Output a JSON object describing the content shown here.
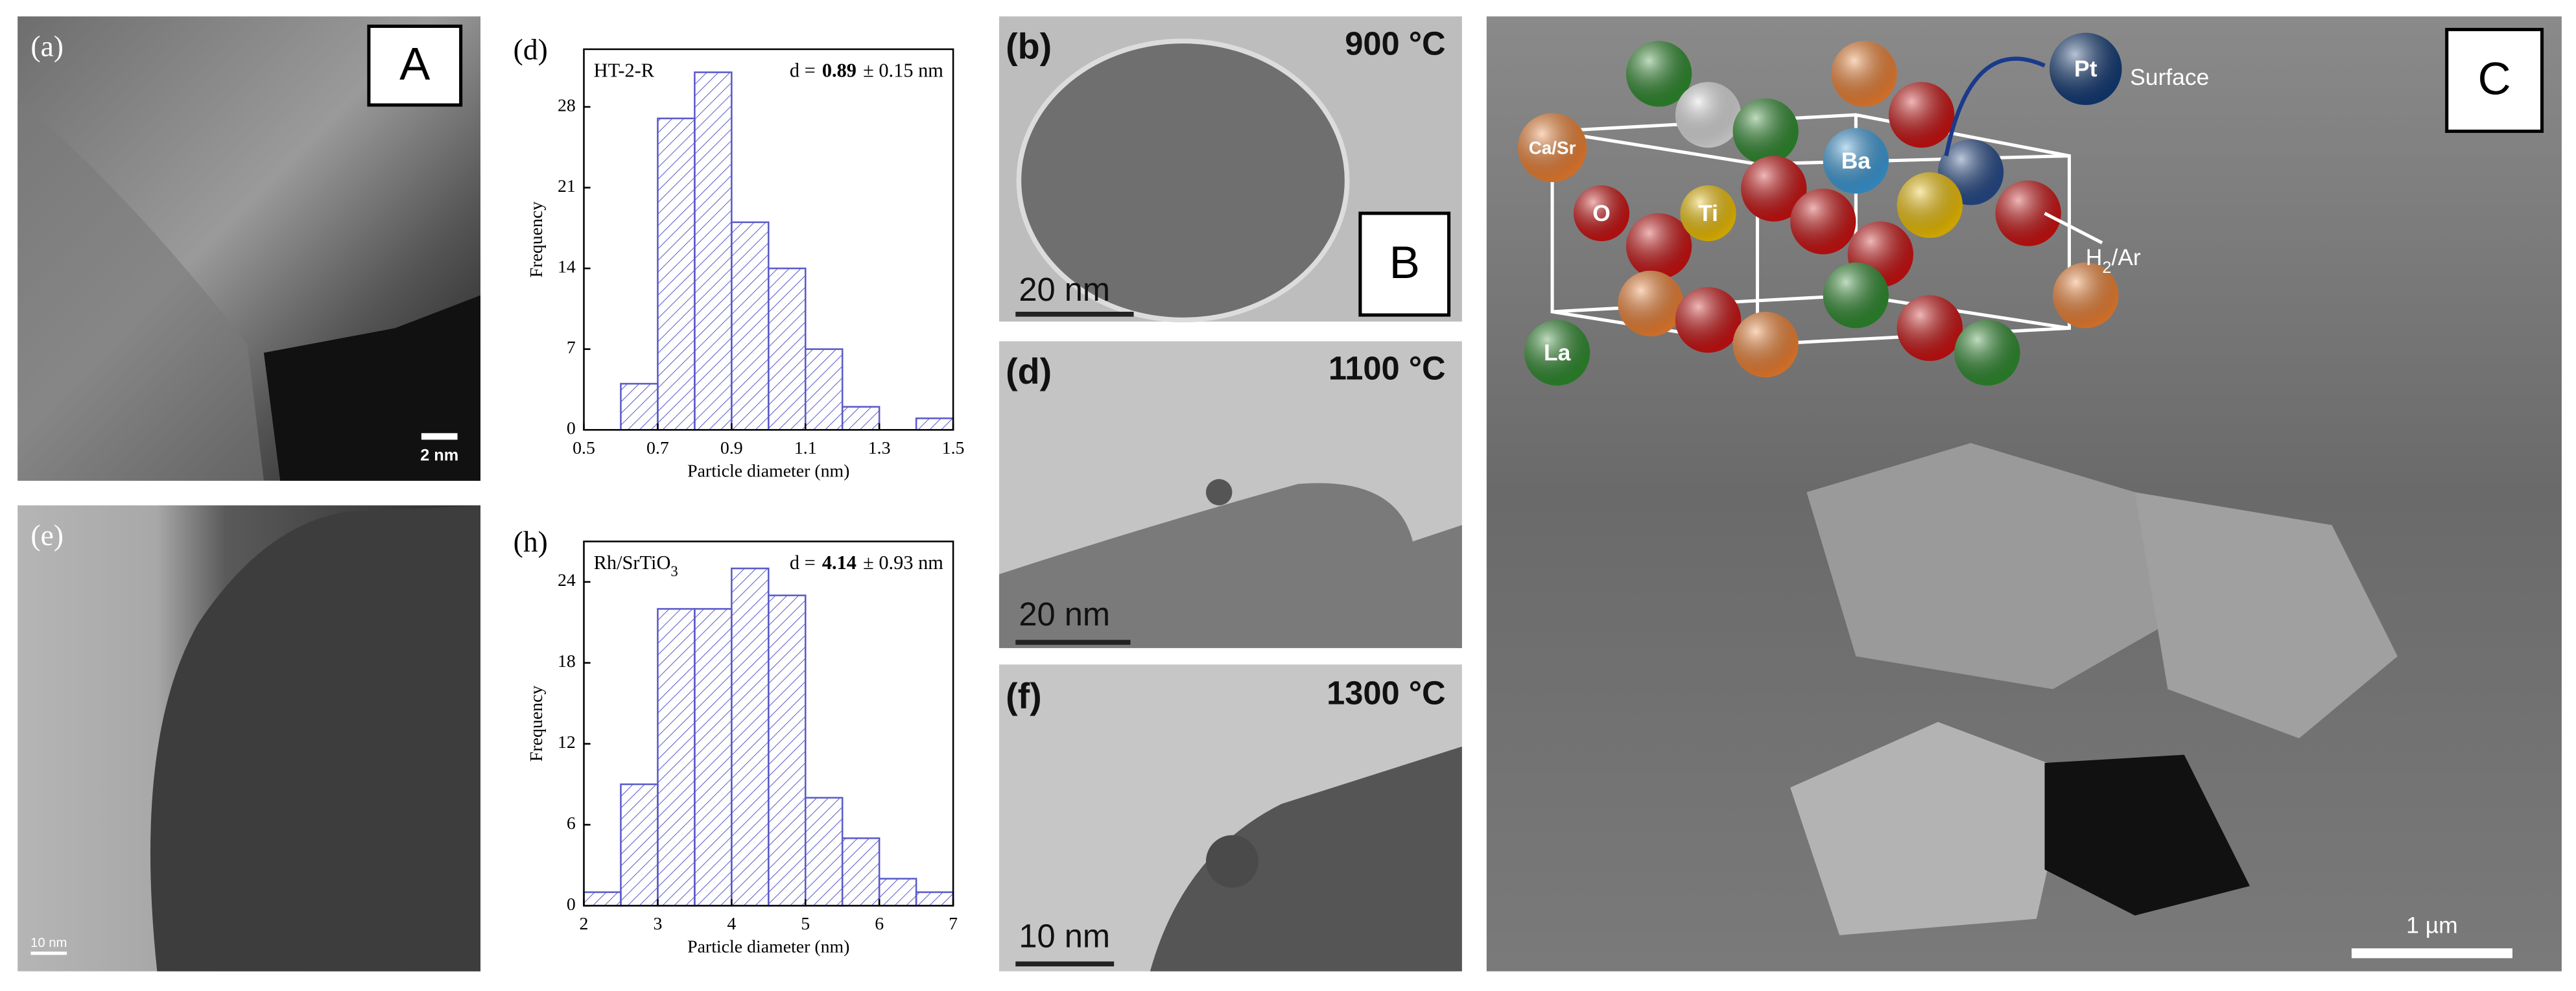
{
  "panels": {
    "a": {
      "label": "(a)",
      "tag": "A",
      "scale": "2 nm"
    },
    "e": {
      "label": "(e)",
      "scale": "10 nm"
    },
    "b": {
      "label": "(b)",
      "temperature": "900 °C",
      "scale": "20 nm",
      "tag": "B"
    },
    "d": {
      "label": "(d)",
      "temperature": "1100 °C",
      "scale": "20 nm"
    },
    "f": {
      "label": "(f)",
      "temperature": "1300 °C",
      "scale": "10 nm"
    },
    "c": {
      "tag": "C",
      "scale": "1 µm",
      "atoms": [
        "Pt",
        "Surface",
        "Ca/Sr",
        "Ba",
        "O",
        "Ti",
        "La"
      ],
      "gas": "H",
      "gas_sub": "2",
      "gas_rest": "/Ar"
    }
  },
  "chart_data": [
    {
      "type": "histogram",
      "panel_label": "(d)",
      "sample": "HT-2-R",
      "mean_prefix": "d =",
      "mean": "0.89",
      "mean_suffix": "± 0.15 nm",
      "x_label": "Particle diameter (nm)",
      "y_label": "Frequency",
      "bins": [
        0.6,
        0.7,
        0.8,
        0.9,
        1.0,
        1.1,
        1.2,
        1.3,
        1.4,
        1.5
      ],
      "values": [
        4,
        27,
        31,
        18,
        14,
        7,
        2,
        0,
        1
      ],
      "color": "#5a5ac8",
      "xlim": [
        0.5,
        1.5
      ],
      "xticks": [
        0.5,
        0.7,
        0.9,
        1.1,
        1.3,
        1.5
      ],
      "ylim": [
        0,
        33
      ],
      "yticks": [
        0,
        7,
        14,
        21,
        28
      ]
    },
    {
      "type": "histogram",
      "panel_label": "(h)",
      "sample": "Rh/SrTiO",
      "sample_sub": "3",
      "mean_prefix": "d =",
      "mean": "4.14",
      "mean_suffix": "± 0.93 nm",
      "x_label": "Particle diameter (nm)",
      "y_label": "Frequency",
      "bins": [
        2,
        2.5,
        3,
        3.5,
        4,
        4.5,
        5,
        5.5,
        6,
        6.5,
        7
      ],
      "values": [
        1,
        9,
        22,
        22,
        25,
        23,
        8,
        5,
        2,
        1
      ],
      "color": "#5a5ac8",
      "xlim": [
        2,
        7
      ],
      "xticks": [
        2,
        3,
        4,
        5,
        6,
        7
      ],
      "ylim": [
        0,
        27
      ],
      "yticks": [
        0,
        6,
        12,
        18,
        24
      ]
    }
  ]
}
